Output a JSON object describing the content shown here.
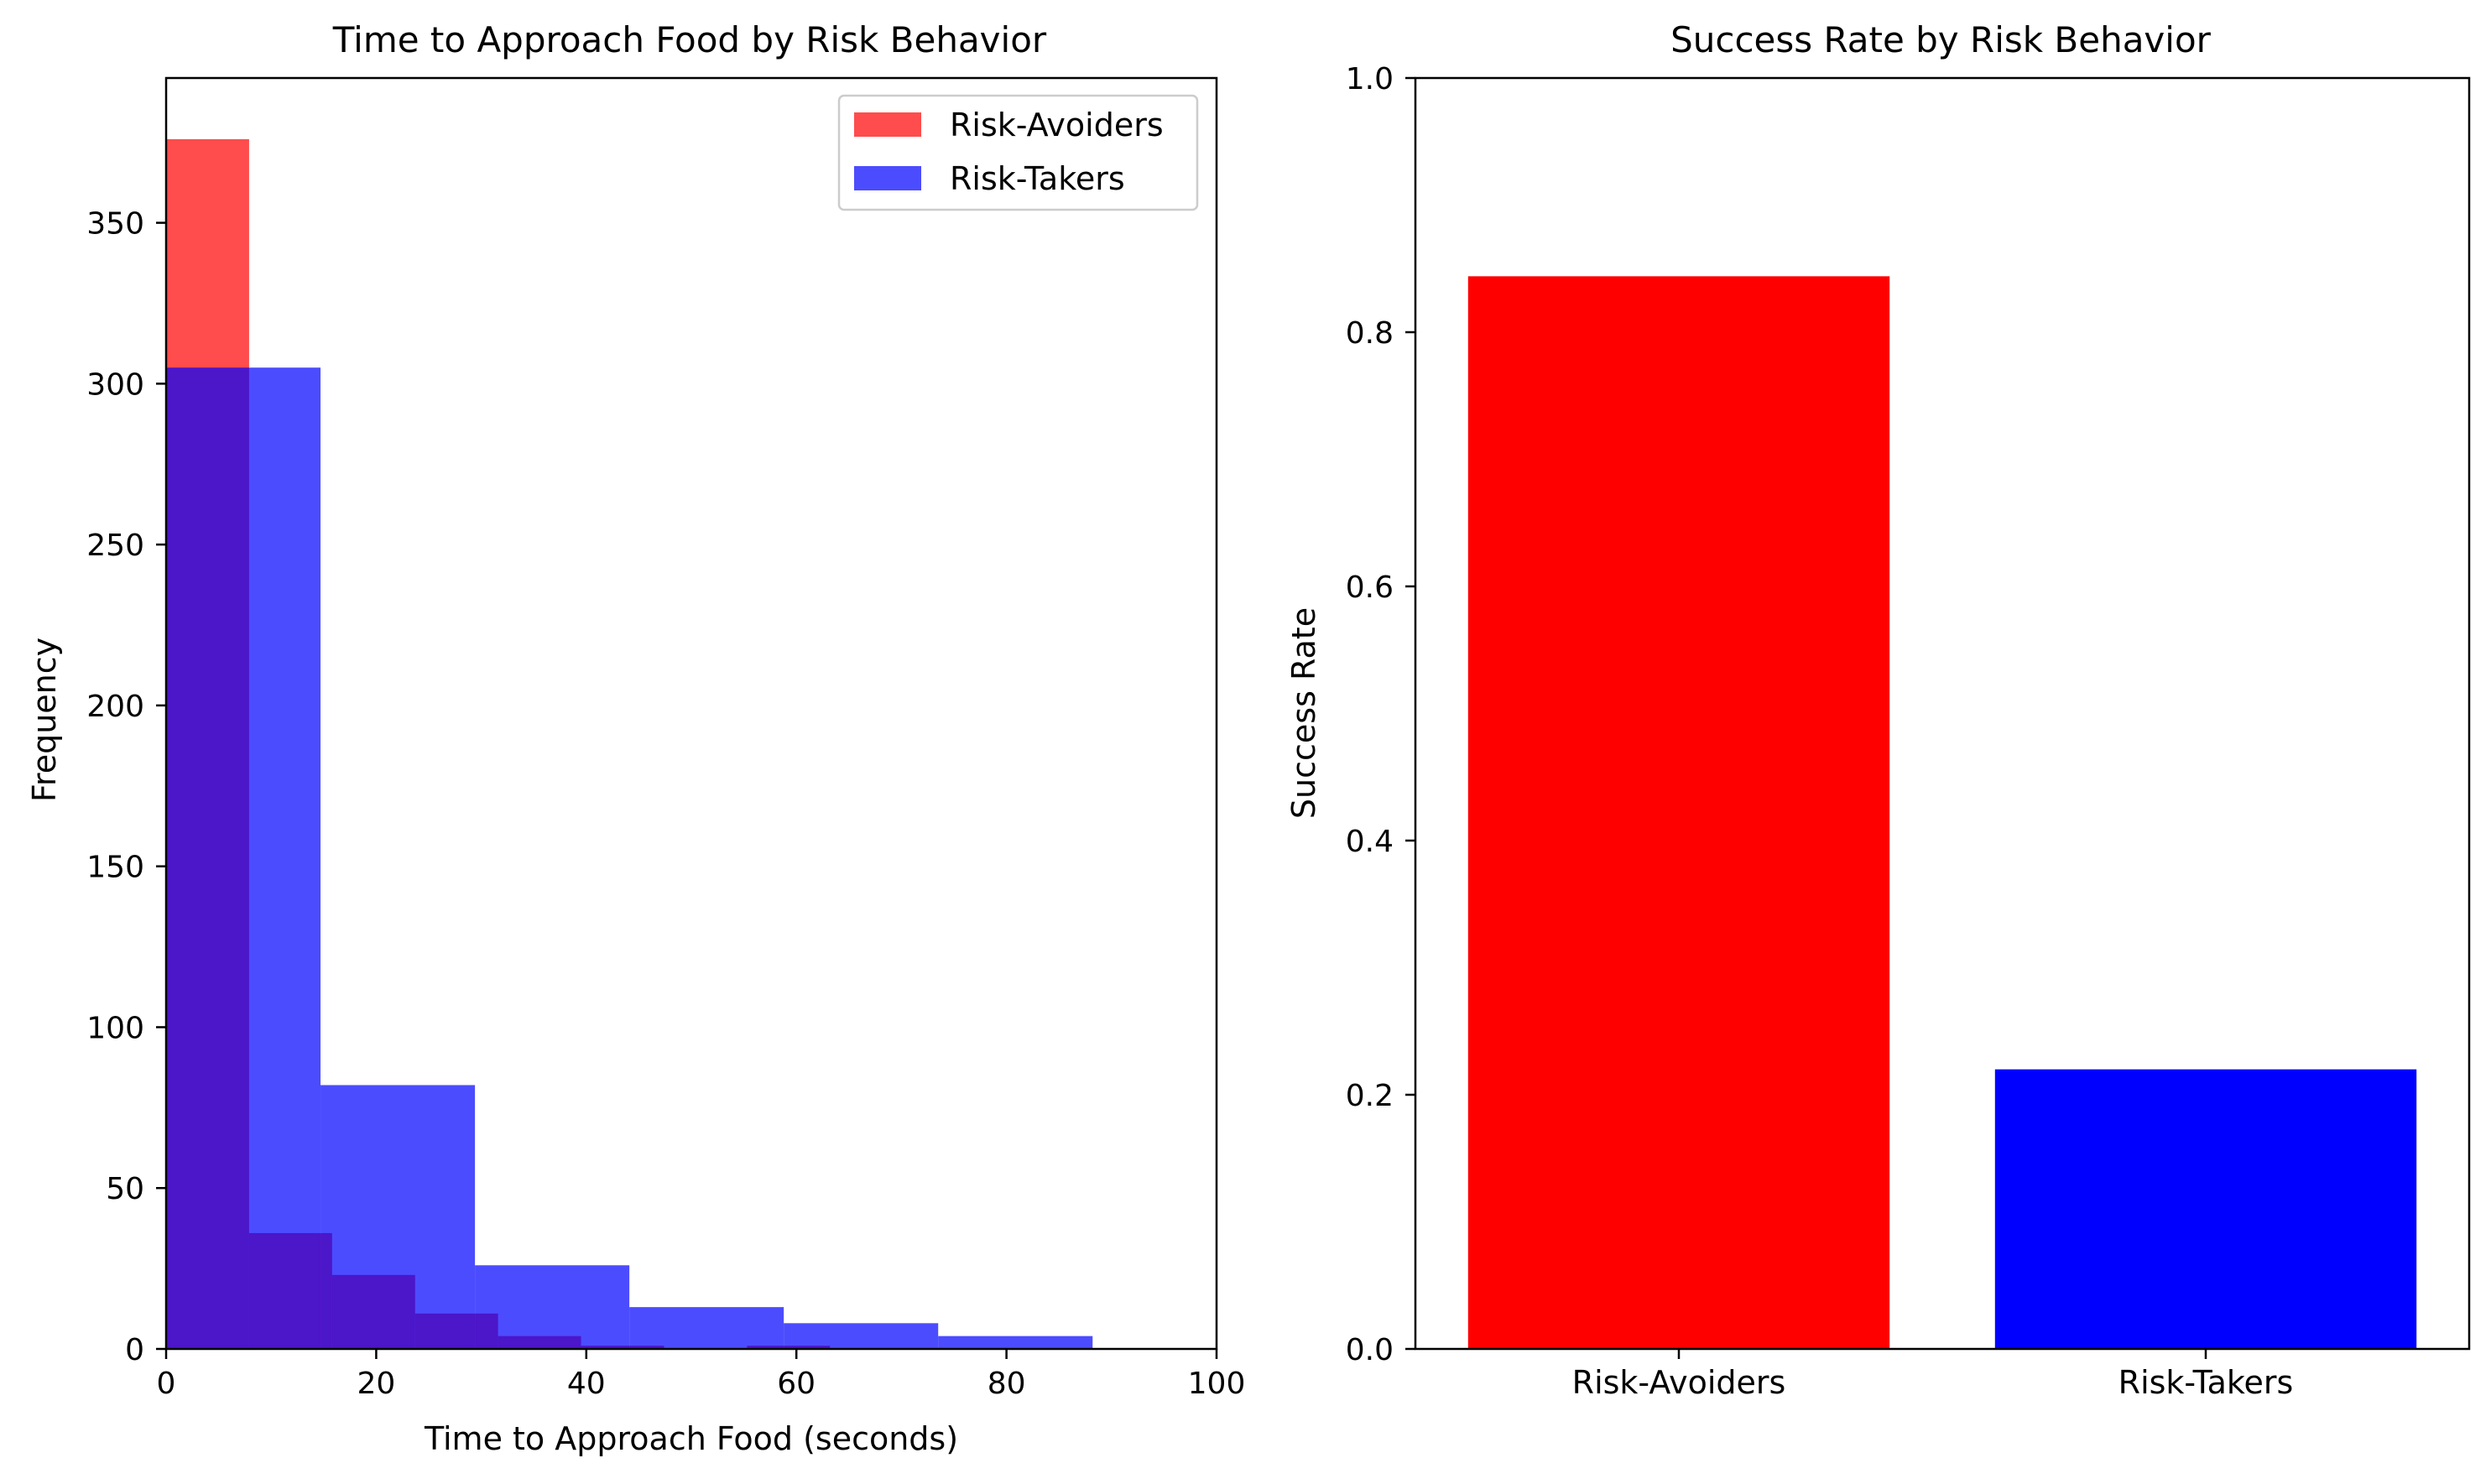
{
  "chart_data": [
    {
      "type": "histogram",
      "title": "Time to Approach Food by Risk Behavior",
      "xlabel": "Time to Approach Food (seconds)",
      "ylabel": "Frequency",
      "xlim": [
        0,
        100
      ],
      "ylim": [
        0,
        395
      ],
      "xticks": [
        0,
        20,
        40,
        60,
        80,
        100
      ],
      "yticks": [
        0,
        50,
        100,
        150,
        200,
        250,
        300,
        350
      ],
      "legend_position": "top-right",
      "opacity": 0.7,
      "series": [
        {
          "name": "Risk-Avoiders",
          "color": "#ff0000",
          "bin_edges": [
            0,
            7.9,
            15.8,
            23.7,
            31.6,
            39.5,
            47.4,
            55.3,
            63.2,
            71.1,
            79.0
          ],
          "counts": [
            376,
            36,
            23,
            11,
            4,
            1,
            0,
            1,
            0,
            0
          ]
        },
        {
          "name": "Risk-Takers",
          "color": "#0000ff",
          "bin_edges": [
            0,
            14.7,
            29.4,
            44.1,
            58.8,
            73.5,
            88.2
          ],
          "counts": [
            305,
            82,
            26,
            13,
            8,
            4
          ]
        }
      ],
      "overlap_color": "#4b16cc"
    },
    {
      "type": "bar",
      "title": "Success Rate by Risk Behavior",
      "xlabel": "",
      "ylabel": "Success Rate",
      "categories": [
        "Risk-Avoiders",
        "Risk-Takers"
      ],
      "values": [
        0.844,
        0.22
      ],
      "colors": [
        "#ff0000",
        "#0000ff"
      ],
      "ylim": [
        0,
        1.0
      ],
      "yticks": [
        0.0,
        0.2,
        0.4,
        0.6,
        0.8,
        1.0
      ],
      "ytick_labels": [
        "0.0",
        "0.2",
        "0.4",
        "0.6",
        "0.8",
        "1.0"
      ]
    }
  ]
}
